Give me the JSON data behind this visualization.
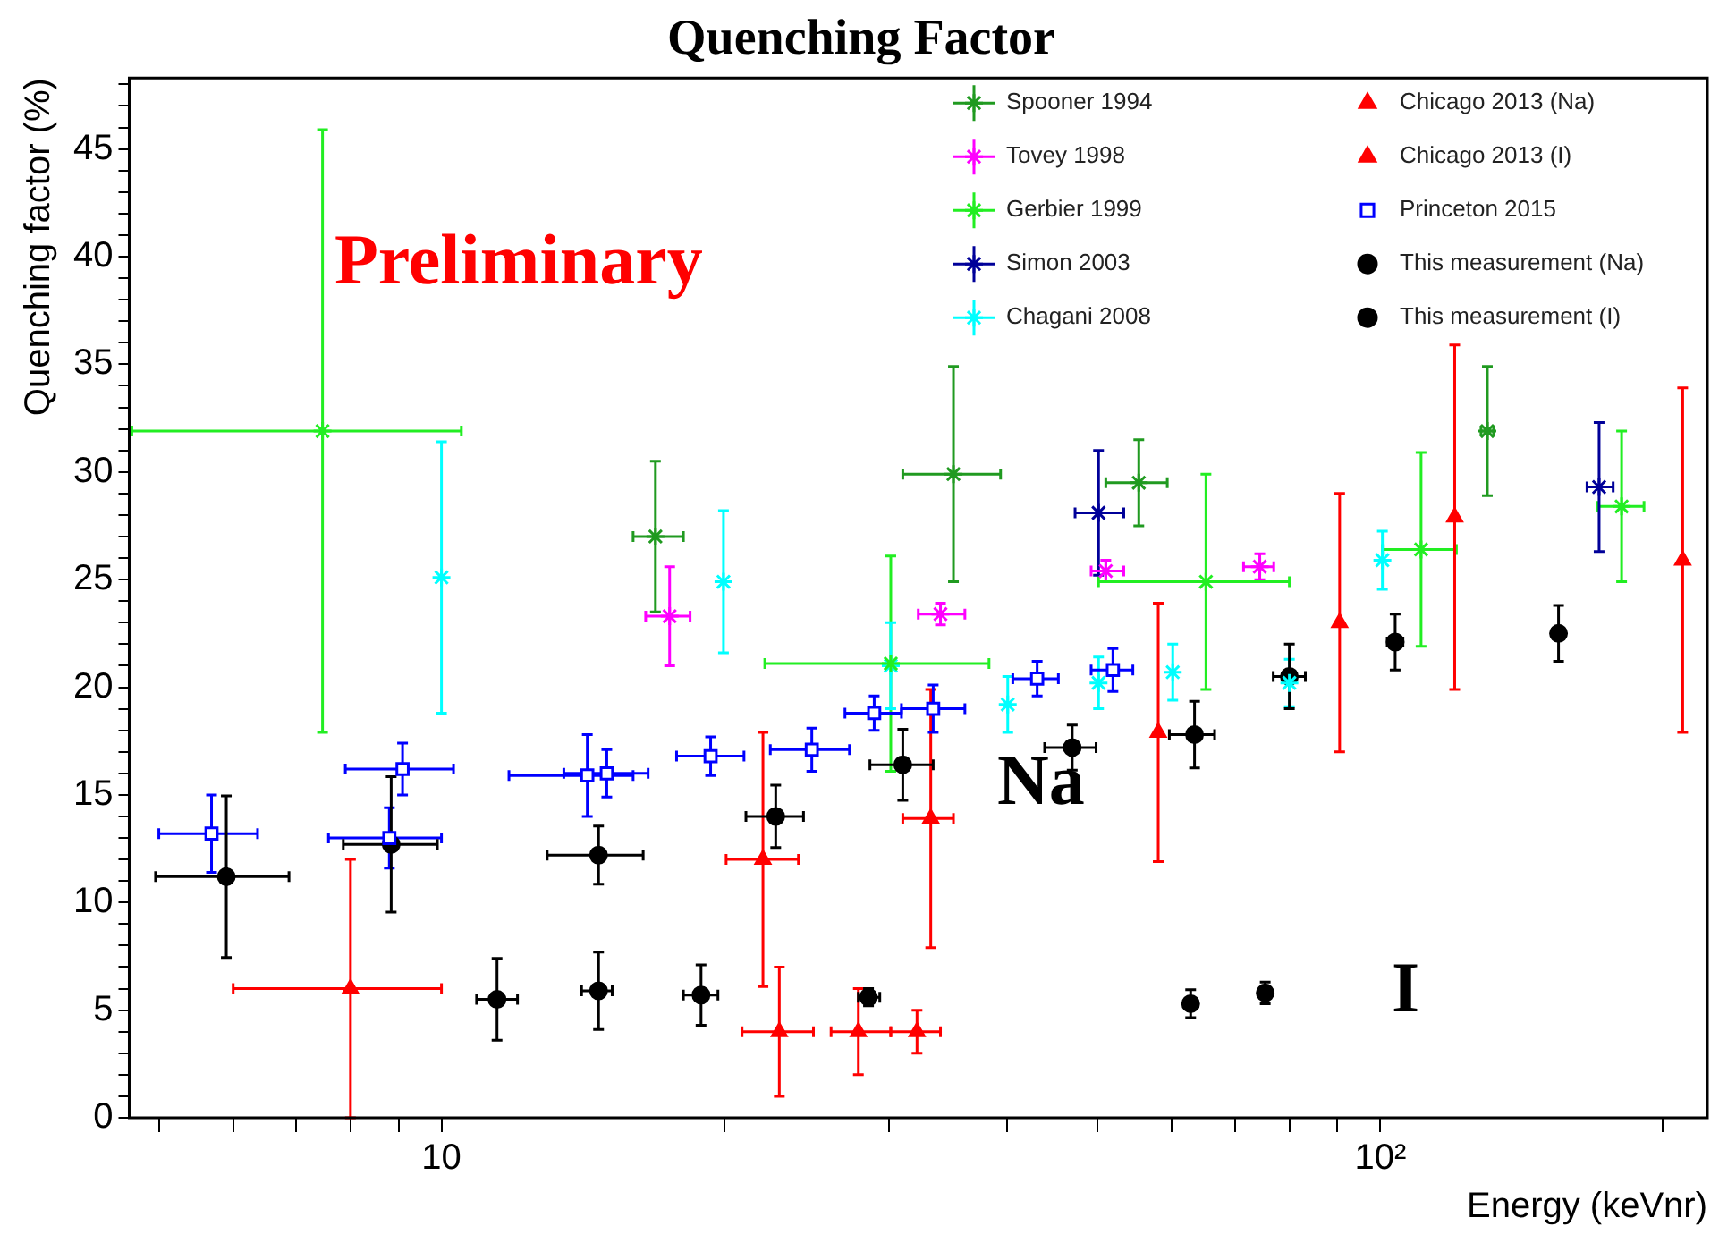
{
  "chart_data": {
    "type": "scatter",
    "title": "Quenching Factor",
    "xlabel": "Energy (keVnr)",
    "ylabel": "Quenching factor (%)",
    "log": "x",
    "grid": false,
    "legend": "top right",
    "xlim": [
      4.65,
      223
    ],
    "ylim": [
      0,
      48.3
    ],
    "xticks": [
      {
        "value": 5,
        "label": null
      },
      {
        "value": 6,
        "label": null
      },
      {
        "value": 7,
        "label": null
      },
      {
        "value": 8,
        "label": null
      },
      {
        "value": 9,
        "label": null
      },
      10,
      {
        "value": 20,
        "label": null
      },
      {
        "value": 30,
        "label": null
      },
      {
        "value": 40,
        "label": null
      },
      {
        "value": 50,
        "label": null
      },
      {
        "value": 60,
        "label": null
      },
      {
        "value": 70,
        "label": null
      },
      {
        "value": 80,
        "label": null
      },
      {
        "value": 90,
        "label": null
      },
      {
        "value": 100,
        "label": "10²"
      },
      {
        "value": 200,
        "label": null
      }
    ],
    "yticks": [
      0,
      {
        "value": 1,
        "label": null
      },
      {
        "value": 2,
        "label": null
      },
      {
        "value": 3,
        "label": null
      },
      {
        "value": 4,
        "label": null
      },
      5,
      {
        "value": 6,
        "label": null
      },
      {
        "value": 7,
        "label": null
      },
      {
        "value": 8,
        "label": null
      },
      {
        "value": 9,
        "label": null
      },
      10,
      {
        "value": 11,
        "label": null
      },
      {
        "value": 12,
        "label": null
      },
      {
        "value": 13,
        "label": null
      },
      {
        "value": 14,
        "label": null
      },
      15,
      {
        "value": 16,
        "label": null
      },
      {
        "value": 17,
        "label": null
      },
      {
        "value": 18,
        "label": null
      },
      {
        "value": 19,
        "label": null
      },
      20,
      {
        "value": 21,
        "label": null
      },
      {
        "value": 22,
        "label": null
      },
      {
        "value": 23,
        "label": null
      },
      {
        "value": 24,
        "label": null
      },
      25,
      {
        "value": 26,
        "label": null
      },
      {
        "value": 27,
        "label": null
      },
      {
        "value": 28,
        "label": null
      },
      {
        "value": 29,
        "label": null
      },
      30,
      {
        "value": 31,
        "label": null
      },
      {
        "value": 32,
        "label": null
      },
      {
        "value": 33,
        "label": null
      },
      {
        "value": 34,
        "label": null
      },
      35,
      {
        "value": 36,
        "label": null
      },
      {
        "value": 37,
        "label": null
      },
      {
        "value": 38,
        "label": null
      },
      {
        "value": 39,
        "label": null
      },
      40,
      {
        "value": 41,
        "label": null
      },
      {
        "value": 42,
        "label": null
      },
      {
        "value": 43,
        "label": null
      },
      {
        "value": 44,
        "label": null
      },
      45,
      {
        "value": 46,
        "label": null
      },
      {
        "value": 47,
        "label": null
      },
      {
        "value": 48,
        "label": null
      }
    ],
    "annotations": [
      "Preliminary",
      "Na",
      "I"
    ],
    "series": [
      {
        "name": "Spooner 1994",
        "color": "#209a20",
        "marker": "cross",
        "x": [
          16.9,
          35.1,
          55.3,
          130
        ],
        "values": [
          27.0,
          29.9,
          29.5,
          31.9
        ],
        "errors": [
          3.5,
          5,
          2,
          3
        ],
        "xerrors": [
          [
            16.0,
            18.1
          ],
          [
            31.0,
            39.4
          ],
          [
            51.0,
            59.3
          ],
          [
            128,
            132
          ]
        ]
      },
      {
        "name": "Tovey 1998",
        "color": "#ff00ff",
        "marker": "cross",
        "x": [
          17.5,
          34.0,
          51.0,
          74.4
        ],
        "values": [
          23.3,
          23.4,
          25.4,
          25.6
        ],
        "errors": [
          2.3,
          0.5,
          0.5,
          0.6
        ],
        "xerrors": [
          [
            16.5,
            18.4
          ],
          [
            32.2,
            36.1
          ],
          [
            49.2,
            53.3
          ],
          [
            71.5,
            77
          ]
        ]
      },
      {
        "name": "Gerbier 1999",
        "color": "#22ee22",
        "marker": "cross",
        "x": [
          7.47,
          30.1,
          65.2,
          110.5,
          180.7
        ],
        "values": [
          31.9,
          21.1,
          24.9,
          26.4,
          28.4
        ],
        "errors": [
          14,
          5,
          5,
          4.5,
          3.5
        ],
        "xerrors": [
          [
            4.68,
            10.5
          ],
          [
            22.1,
            38.3
          ],
          [
            50.1,
            80.0
          ],
          [
            100.5,
            120.5
          ],
          [
            170.2,
            190.9
          ]
        ]
      },
      {
        "name": "Simon 2003",
        "color": "#000099",
        "marker": "cross",
        "x": [
          50.1,
          171
        ],
        "values": [
          28.1,
          29.3
        ],
        "errors": [
          2.9,
          3
        ],
        "xerrors": [
          [
            47.3,
            53.3
          ],
          [
            166,
            177
          ]
        ]
      },
      {
        "name": "Chagani 2008",
        "color": "#00ffff",
        "marker": "cross",
        "x": [
          10.0,
          19.97,
          30.1,
          40.1,
          50.1,
          60.1,
          80.0,
          100.5
        ],
        "values": [
          25.1,
          24.9,
          21.0,
          19.2,
          20.2,
          20.7,
          20.2,
          25.9
        ],
        "errors": [
          6.3,
          3.3,
          2.0,
          1.3,
          1.2,
          1.3,
          1.1,
          1.35
        ],
        "xerrors": [
          null,
          null,
          null,
          null,
          null,
          null,
          null,
          null
        ]
      },
      {
        "name": "Chicago 2013 (Na)",
        "color": "#ff0000",
        "marker": "triangle",
        "x": [
          8.0,
          22.0,
          33.2,
          58.0,
          90.5,
          120,
          209.9
        ],
        "values": [
          6.0,
          12.0,
          13.9,
          17.9,
          23.0,
          27.9,
          25.9
        ],
        "errors": [
          6,
          5.9,
          6,
          6,
          6,
          8,
          8
        ],
        "xerrors": [
          [
            6.0,
            10.0
          ],
          [
            20.1,
            24.0
          ],
          [
            31.0,
            35.1
          ],
          null,
          null,
          null,
          null
        ]
      },
      {
        "name": "Chicago 2013 (I)",
        "color": "#ff0000",
        "marker": "triangle",
        "x": [
          22.9,
          27.8,
          32.1
        ],
        "values": [
          4.0,
          4.0,
          4.0
        ],
        "errors": [
          3,
          2,
          1
        ],
        "xerrors": [
          [
            20.9,
            24.9
          ],
          [
            26.0,
            30.1
          ],
          [
            30.1,
            34.0
          ]
        ]
      },
      {
        "name": "Princeton 2015",
        "color": "#0000ff",
        "marker": "square",
        "x": [
          5.69,
          8.8,
          9.09,
          14.3,
          15.0,
          19.35,
          24.8,
          28.9,
          33.4,
          43.1,
          51.9
        ],
        "values": [
          13.2,
          13.0,
          16.2,
          15.9,
          16.0,
          16.8,
          17.1,
          18.8,
          19.0,
          20.4,
          20.8
        ],
        "errors": [
          1.8,
          1.4,
          1.2,
          1.9,
          1.1,
          0.9,
          1,
          0.8,
          1.1,
          0.8,
          1.0
        ],
        "xerrors": [
          [
            5.0,
            6.37
          ],
          [
            7.58,
            10.0
          ],
          [
            7.9,
            10.3
          ],
          [
            11.8,
            16.0
          ],
          [
            13.5,
            16.6
          ],
          [
            17.8,
            21.0
          ],
          [
            22.4,
            27.2
          ],
          [
            26.9,
            30.9
          ],
          [
            30.9,
            36.1
          ],
          [
            40.6,
            45.4
          ],
          [
            49.2,
            54.5
          ]
        ]
      },
      {
        "name": "This measurement (Na)",
        "color": "#000000",
        "marker": "circle",
        "x": [
          5.9,
          8.84,
          14.7,
          22.7,
          31.0,
          46.97,
          63.4,
          80.0,
          103.7,
          154.8
        ],
        "values": [
          11.2,
          12.7,
          12.2,
          14.0,
          16.4,
          17.2,
          17.8,
          20.5,
          22.1,
          22.5
        ],
        "errors": [
          3.75,
          3.15,
          1.35,
          1.45,
          1.65,
          1.05,
          1.55,
          1.5,
          1.3,
          1.3
        ],
        "xerrors": [
          [
            4.96,
            6.88
          ],
          [
            7.86,
            9.9
          ],
          [
            12.96,
            16.4
          ],
          [
            21.1,
            24.3
          ],
          [
            28.6,
            33.4
          ],
          [
            43.9,
            49.8
          ],
          [
            59.6,
            66.6
          ],
          [
            76.9,
            83.2
          ],
          [
            101.7,
            105.7
          ],
          [
            152.5,
            157
          ]
        ]
      },
      {
        "name": "This measurement (I)",
        "color": "#000000",
        "marker": "circle",
        "x": [
          11.46,
          14.7,
          18.9,
          28.5,
          62.8,
          75.4
        ],
        "values": [
          5.5,
          5.9,
          5.7,
          5.6,
          5.3,
          5.8
        ],
        "errors": [
          1.9,
          1.8,
          1.4,
          0.4,
          0.65,
          0.5
        ],
        "xerrors": [
          [
            10.9,
            12.05
          ],
          [
            14.1,
            15.2
          ],
          [
            18.1,
            19.7
          ],
          [
            27.8,
            29.3
          ],
          null,
          null
        ]
      }
    ]
  }
}
